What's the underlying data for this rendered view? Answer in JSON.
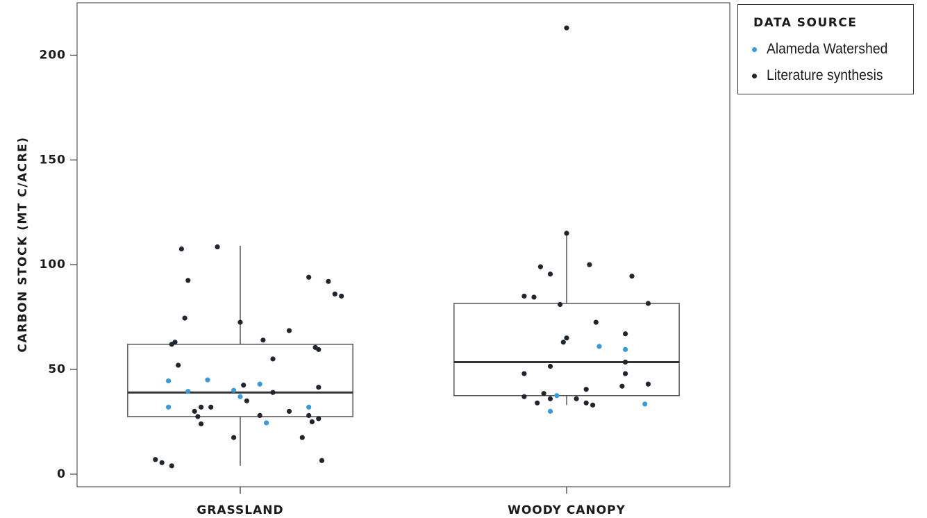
{
  "chart_data": {
    "type": "box",
    "ylabel": "CARBON STOCK (MT C/ACRE)",
    "xlabel": "",
    "ylim": [
      -6,
      225
    ],
    "yticks": [
      0,
      50,
      100,
      150,
      200
    ],
    "categories": [
      "GRASSLAND",
      "WOODY CANOPY"
    ],
    "grid": false,
    "legend": {
      "title": "DATA SOURCE",
      "placement": "outside-right-top",
      "entries": [
        {
          "name": "Alameda Watershed",
          "color": "#3a9ad9"
        },
        {
          "name": "Literature synthesis",
          "color": "#1f2630"
        }
      ]
    },
    "boxes": [
      {
        "category": "GRASSLAND",
        "q1": 27.5,
        "median": 39,
        "q3": 62,
        "whisker_low": 4,
        "whisker_high": 109
      },
      {
        "category": "WOODY CANOPY",
        "q1": 37.5,
        "median": 53.5,
        "q3": 81.5,
        "whisker_low": 33,
        "whisker_high": 115
      }
    ],
    "series": [
      {
        "name": "Alameda Watershed",
        "points": [
          {
            "category": "GRASSLAND",
            "jitter": -0.22,
            "y": 44.5
          },
          {
            "category": "GRASSLAND",
            "jitter": -0.1,
            "y": 45
          },
          {
            "category": "GRASSLAND",
            "jitter": -0.16,
            "y": 39.5
          },
          {
            "category": "GRASSLAND",
            "jitter": -0.02,
            "y": 40
          },
          {
            "category": "GRASSLAND",
            "jitter": 0.06,
            "y": 43
          },
          {
            "category": "GRASSLAND",
            "jitter": 0.0,
            "y": 37
          },
          {
            "category": "GRASSLAND",
            "jitter": -0.22,
            "y": 32
          },
          {
            "category": "GRASSLAND",
            "jitter": 0.21,
            "y": 32
          },
          {
            "category": "GRASSLAND",
            "jitter": 0.08,
            "y": 24.5
          },
          {
            "category": "WOODY CANOPY",
            "jitter": 0.1,
            "y": 61
          },
          {
            "category": "WOODY CANOPY",
            "jitter": 0.18,
            "y": 59.5
          },
          {
            "category": "WOODY CANOPY",
            "jitter": -0.03,
            "y": 37.5
          },
          {
            "category": "WOODY CANOPY",
            "jitter": -0.05,
            "y": 30
          },
          {
            "category": "WOODY CANOPY",
            "jitter": 0.24,
            "y": 33.5
          }
        ]
      },
      {
        "name": "Literature synthesis",
        "points": [
          {
            "category": "GRASSLAND",
            "jitter": -0.18,
            "y": 107.5
          },
          {
            "category": "GRASSLAND",
            "jitter": -0.07,
            "y": 108.5
          },
          {
            "category": "GRASSLAND",
            "jitter": -0.16,
            "y": 92.5
          },
          {
            "category": "GRASSLAND",
            "jitter": 0.21,
            "y": 94
          },
          {
            "category": "GRASSLAND",
            "jitter": 0.27,
            "y": 92
          },
          {
            "category": "GRASSLAND",
            "jitter": 0.29,
            "y": 86
          },
          {
            "category": "GRASSLAND",
            "jitter": 0.31,
            "y": 85
          },
          {
            "category": "GRASSLAND",
            "jitter": -0.17,
            "y": 74.5
          },
          {
            "category": "GRASSLAND",
            "jitter": 0.0,
            "y": 72.5
          },
          {
            "category": "GRASSLAND",
            "jitter": 0.15,
            "y": 68.5
          },
          {
            "category": "GRASSLAND",
            "jitter": 0.07,
            "y": 64
          },
          {
            "category": "GRASSLAND",
            "jitter": -0.2,
            "y": 63
          },
          {
            "category": "GRASSLAND",
            "jitter": -0.21,
            "y": 62
          },
          {
            "category": "GRASSLAND",
            "jitter": 0.23,
            "y": 60.5
          },
          {
            "category": "GRASSLAND",
            "jitter": 0.24,
            "y": 59.5
          },
          {
            "category": "GRASSLAND",
            "jitter": 0.1,
            "y": 55
          },
          {
            "category": "GRASSLAND",
            "jitter": -0.19,
            "y": 52
          },
          {
            "category": "GRASSLAND",
            "jitter": 0.01,
            "y": 42.5
          },
          {
            "category": "GRASSLAND",
            "jitter": 0.24,
            "y": 41.5
          },
          {
            "category": "GRASSLAND",
            "jitter": 0.1,
            "y": 39
          },
          {
            "category": "GRASSLAND",
            "jitter": 0.02,
            "y": 35
          },
          {
            "category": "GRASSLAND",
            "jitter": -0.09,
            "y": 32
          },
          {
            "category": "GRASSLAND",
            "jitter": -0.12,
            "y": 32
          },
          {
            "category": "GRASSLAND",
            "jitter": -0.14,
            "y": 30
          },
          {
            "category": "GRASSLAND",
            "jitter": 0.15,
            "y": 30
          },
          {
            "category": "GRASSLAND",
            "jitter": -0.13,
            "y": 27.5
          },
          {
            "category": "GRASSLAND",
            "jitter": 0.21,
            "y": 28
          },
          {
            "category": "GRASSLAND",
            "jitter": 0.06,
            "y": 28
          },
          {
            "category": "GRASSLAND",
            "jitter": 0.24,
            "y": 26.5
          },
          {
            "category": "GRASSLAND",
            "jitter": 0.22,
            "y": 25
          },
          {
            "category": "GRASSLAND",
            "jitter": -0.12,
            "y": 24
          },
          {
            "category": "GRASSLAND",
            "jitter": -0.02,
            "y": 17.5
          },
          {
            "category": "GRASSLAND",
            "jitter": 0.19,
            "y": 17.5
          },
          {
            "category": "GRASSLAND",
            "jitter": -0.26,
            "y": 7
          },
          {
            "category": "GRASSLAND",
            "jitter": -0.24,
            "y": 5.5
          },
          {
            "category": "GRASSLAND",
            "jitter": -0.21,
            "y": 4
          },
          {
            "category": "GRASSLAND",
            "jitter": 0.25,
            "y": 6.5
          },
          {
            "category": "WOODY CANOPY",
            "jitter": 0.0,
            "y": 213
          },
          {
            "category": "WOODY CANOPY",
            "jitter": 0.0,
            "y": 115
          },
          {
            "category": "WOODY CANOPY",
            "jitter": -0.08,
            "y": 99
          },
          {
            "category": "WOODY CANOPY",
            "jitter": 0.07,
            "y": 100
          },
          {
            "category": "WOODY CANOPY",
            "jitter": -0.05,
            "y": 95.5
          },
          {
            "category": "WOODY CANOPY",
            "jitter": 0.2,
            "y": 94.5
          },
          {
            "category": "WOODY CANOPY",
            "jitter": -0.13,
            "y": 85
          },
          {
            "category": "WOODY CANOPY",
            "jitter": -0.1,
            "y": 84.5
          },
          {
            "category": "WOODY CANOPY",
            "jitter": 0.25,
            "y": 81.5
          },
          {
            "category": "WOODY CANOPY",
            "jitter": -0.02,
            "y": 81
          },
          {
            "category": "WOODY CANOPY",
            "jitter": 0.09,
            "y": 72.5
          },
          {
            "category": "WOODY CANOPY",
            "jitter": 0.18,
            "y": 67
          },
          {
            "category": "WOODY CANOPY",
            "jitter": 0.0,
            "y": 65
          },
          {
            "category": "WOODY CANOPY",
            "jitter": -0.01,
            "y": 63
          },
          {
            "category": "WOODY CANOPY",
            "jitter": 0.18,
            "y": 53.5
          },
          {
            "category": "WOODY CANOPY",
            "jitter": -0.05,
            "y": 51.5
          },
          {
            "category": "WOODY CANOPY",
            "jitter": -0.13,
            "y": 48
          },
          {
            "category": "WOODY CANOPY",
            "jitter": 0.18,
            "y": 48
          },
          {
            "category": "WOODY CANOPY",
            "jitter": 0.25,
            "y": 43
          },
          {
            "category": "WOODY CANOPY",
            "jitter": 0.17,
            "y": 42
          },
          {
            "category": "WOODY CANOPY",
            "jitter": 0.06,
            "y": 40.5
          },
          {
            "category": "WOODY CANOPY",
            "jitter": -0.07,
            "y": 38.5
          },
          {
            "category": "WOODY CANOPY",
            "jitter": -0.13,
            "y": 37
          },
          {
            "category": "WOODY CANOPY",
            "jitter": -0.05,
            "y": 36
          },
          {
            "category": "WOODY CANOPY",
            "jitter": 0.03,
            "y": 36
          },
          {
            "category": "WOODY CANOPY",
            "jitter": -0.09,
            "y": 34
          },
          {
            "category": "WOODY CANOPY",
            "jitter": 0.06,
            "y": 34
          },
          {
            "category": "WOODY CANOPY",
            "jitter": 0.08,
            "y": 33
          }
        ]
      }
    ]
  }
}
